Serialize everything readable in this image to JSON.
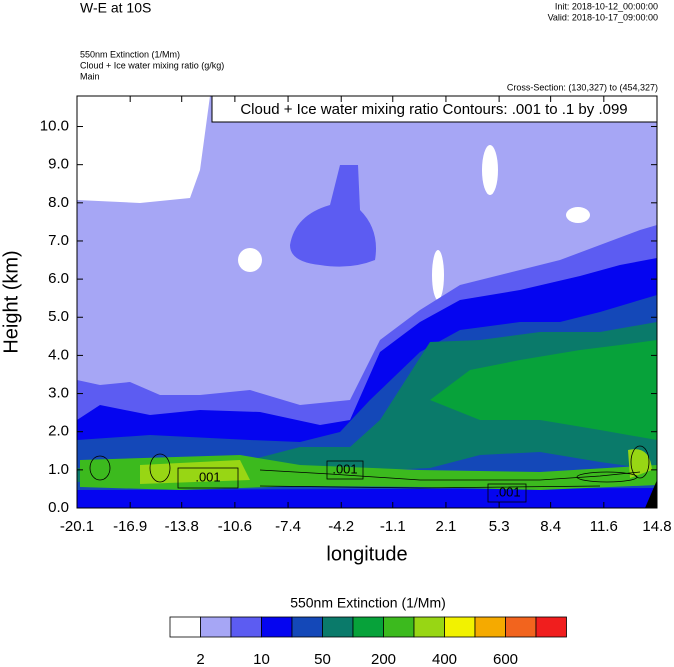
{
  "chart_data": {
    "type": "contour",
    "title": "W-E at 10S",
    "init": "Init: 2018-10-12_00:00:00",
    "valid": "Valid: 2018-10-17_09:00:00",
    "field_lines": [
      "550nm Extinction   (1/Mm)",
      "Cloud + Ice water mixing ratio   (g/kg)",
      "Main"
    ],
    "cross_section": "Cross-Section: (130,327) to (454,327)",
    "contour_info": "Cloud + Ice water mixing ratio Contours: .001 to .1 by .099",
    "contour_labels": [
      ".001",
      ".001",
      ".001"
    ],
    "x_label": "longitude",
    "y_label": "Height (km)",
    "xlim": [
      -20.1,
      14.8
    ],
    "xticks": [
      -20.1,
      -16.9,
      -13.8,
      -10.6,
      -7.4,
      -4.2,
      -1.1,
      2.1,
      5.3,
      8.4,
      11.6,
      14.8
    ],
    "ylim": [
      0,
      10.8
    ],
    "yticks": [
      {
        "value": 0,
        "label": "0.0"
      },
      {
        "value": 1,
        "label": "1.0"
      },
      {
        "value": 2,
        "label": "2.0"
      },
      {
        "value": 3,
        "label": "3.0"
      },
      {
        "value": 4,
        "label": "4.0"
      },
      {
        "value": 5,
        "label": "5.0"
      },
      {
        "value": 6,
        "label": "6.0"
      },
      {
        "value": 7,
        "label": "7.0"
      },
      {
        "value": 8,
        "label": "8.0"
      },
      {
        "value": 9,
        "label": "9.0"
      },
      {
        "value": 10,
        "label": "10.0"
      }
    ],
    "colorbar_title": "550nm Extinction  (1/Mm)",
    "colorbar_colors": [
      "#ffffff",
      "#a6a6f5",
      "#5c5cf2",
      "#0505f0",
      "#1448b8",
      "#0a7a6a",
      "#07a23a",
      "#3cba1e",
      "#98d614",
      "#f2f200",
      "#f5aa00",
      "#f2641e",
      "#f01e1e"
    ],
    "colorbar_ticks": [
      2,
      10,
      50,
      200,
      400,
      600
    ]
  }
}
